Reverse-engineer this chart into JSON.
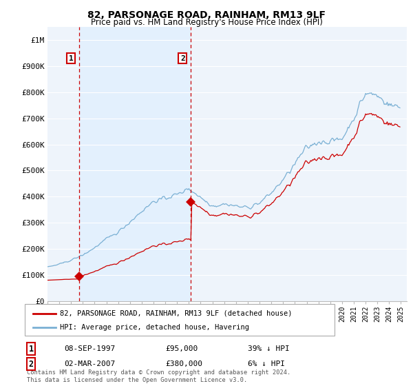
{
  "title": "82, PARSONAGE ROAD, RAINHAM, RM13 9LF",
  "subtitle": "Price paid vs. HM Land Registry's House Price Index (HPI)",
  "legend_line1": "82, PARSONAGE ROAD, RAINHAM, RM13 9LF (detached house)",
  "legend_line2": "HPI: Average price, detached house, Havering",
  "annotation1_label": "1",
  "annotation1_date": "08-SEP-1997",
  "annotation1_price": "£95,000",
  "annotation1_hpi": "39% ↓ HPI",
  "annotation1_year": 1997.69,
  "annotation1_value": 95000,
  "annotation2_label": "2",
  "annotation2_date": "02-MAR-2007",
  "annotation2_price": "£380,000",
  "annotation2_hpi": "6% ↓ HPI",
  "annotation2_year": 2007.17,
  "annotation2_value": 380000,
  "red_line_color": "#cc0000",
  "blue_line_color": "#7ab0d4",
  "fill_color": "#ddeeff",
  "dashed_line_color": "#cc0000",
  "background_color": "#ffffff",
  "plot_bg_color": "#eef4fb",
  "grid_color": "#ffffff",
  "ylim": [
    0,
    1050000
  ],
  "xlim_start": 1995.0,
  "xlim_end": 2025.5,
  "footer": "Contains HM Land Registry data © Crown copyright and database right 2024.\nThis data is licensed under the Open Government Licence v3.0."
}
